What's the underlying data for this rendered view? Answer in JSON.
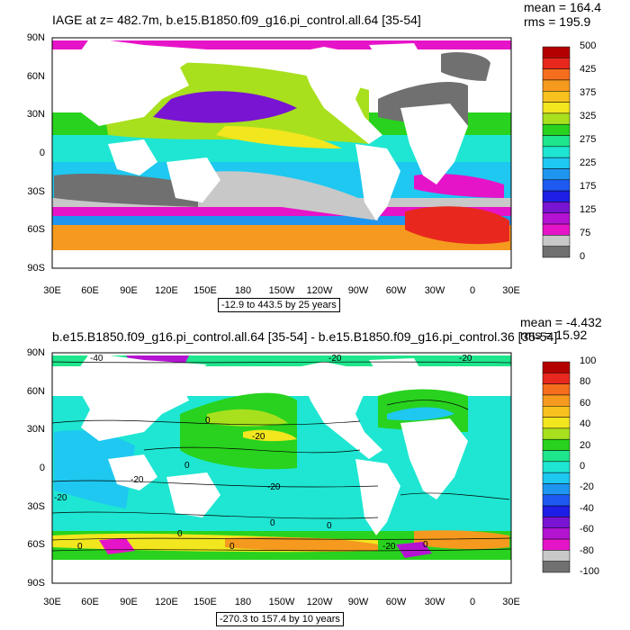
{
  "panels": [
    {
      "title": "IAGE at z= 482.7m, b.e15.B1850.f09_g16.pi_control.all.64 [35-54]",
      "mean_label": "mean = 164.4",
      "rms_label": "rms = 195.9",
      "range_label": "-12.9 to 443.5 by 25 years",
      "lat_ticks": [
        "90N",
        "60N",
        "30N",
        "0",
        "30S",
        "60S",
        "90S"
      ],
      "lon_ticks": [
        "30E",
        "60E",
        "90E",
        "120E",
        "150E",
        "180",
        "150W",
        "120W",
        "90W",
        "60W",
        "30W",
        "0",
        "30E"
      ],
      "colorbar": {
        "labels": [
          "500",
          "425",
          "375",
          "325",
          "275",
          "225",
          "175",
          "125",
          "75",
          "0"
        ],
        "colors": [
          "#b40000",
          "#e8281e",
          "#f56e1e",
          "#f59a1e",
          "#f7c21e",
          "#f2e61e",
          "#a8e01e",
          "#28d21e",
          "#1ee68c",
          "#1ee6d2",
          "#1ec8f0",
          "#1e96f0",
          "#1e5af0",
          "#1e1ee6",
          "#7814d2",
          "#b414d2",
          "#e614c8",
          "#c8c8c8",
          "#707070"
        ]
      },
      "contour_labels": []
    },
    {
      "title": "b.e15.B1850.f09_g16.pi_control.all.64 [35-54] - b.e15.B1850.f09_g16.pi_control.36 [35-54]",
      "mean_label": "mean = -4.432",
      "rms_label": "rms = 15.92",
      "range_label": "-270.3 to 157.4 by 10 years",
      "lat_ticks": [
        "90N",
        "60N",
        "30N",
        "0",
        "30S",
        "60S",
        "90S"
      ],
      "lon_ticks": [
        "30E",
        "60E",
        "90E",
        "120E",
        "150E",
        "180",
        "150W",
        "120W",
        "90W",
        "60W",
        "30W",
        "0",
        "30E"
      ],
      "colorbar": {
        "labels": [
          "100",
          "80",
          "60",
          "40",
          "20",
          "0",
          "-20",
          "-40",
          "-60",
          "-80",
          "-100"
        ],
        "colors": [
          "#b40000",
          "#e8281e",
          "#f56e1e",
          "#f59a1e",
          "#f7c21e",
          "#f2e61e",
          "#a8e01e",
          "#28d21e",
          "#1ee68c",
          "#1ee6d2",
          "#1ec8f0",
          "#1e96f0",
          "#1e5af0",
          "#1e1ee6",
          "#7814d2",
          "#b414d2",
          "#e614c8",
          "#c8c8c8",
          "#707070"
        ]
      },
      "contour_labels": [
        "-40",
        "-20",
        "-20",
        "0",
        "-20",
        "-20",
        "0",
        "-20",
        "-20",
        "0",
        "0",
        "0",
        "0",
        "0",
        "0",
        "-20"
      ]
    }
  ]
}
